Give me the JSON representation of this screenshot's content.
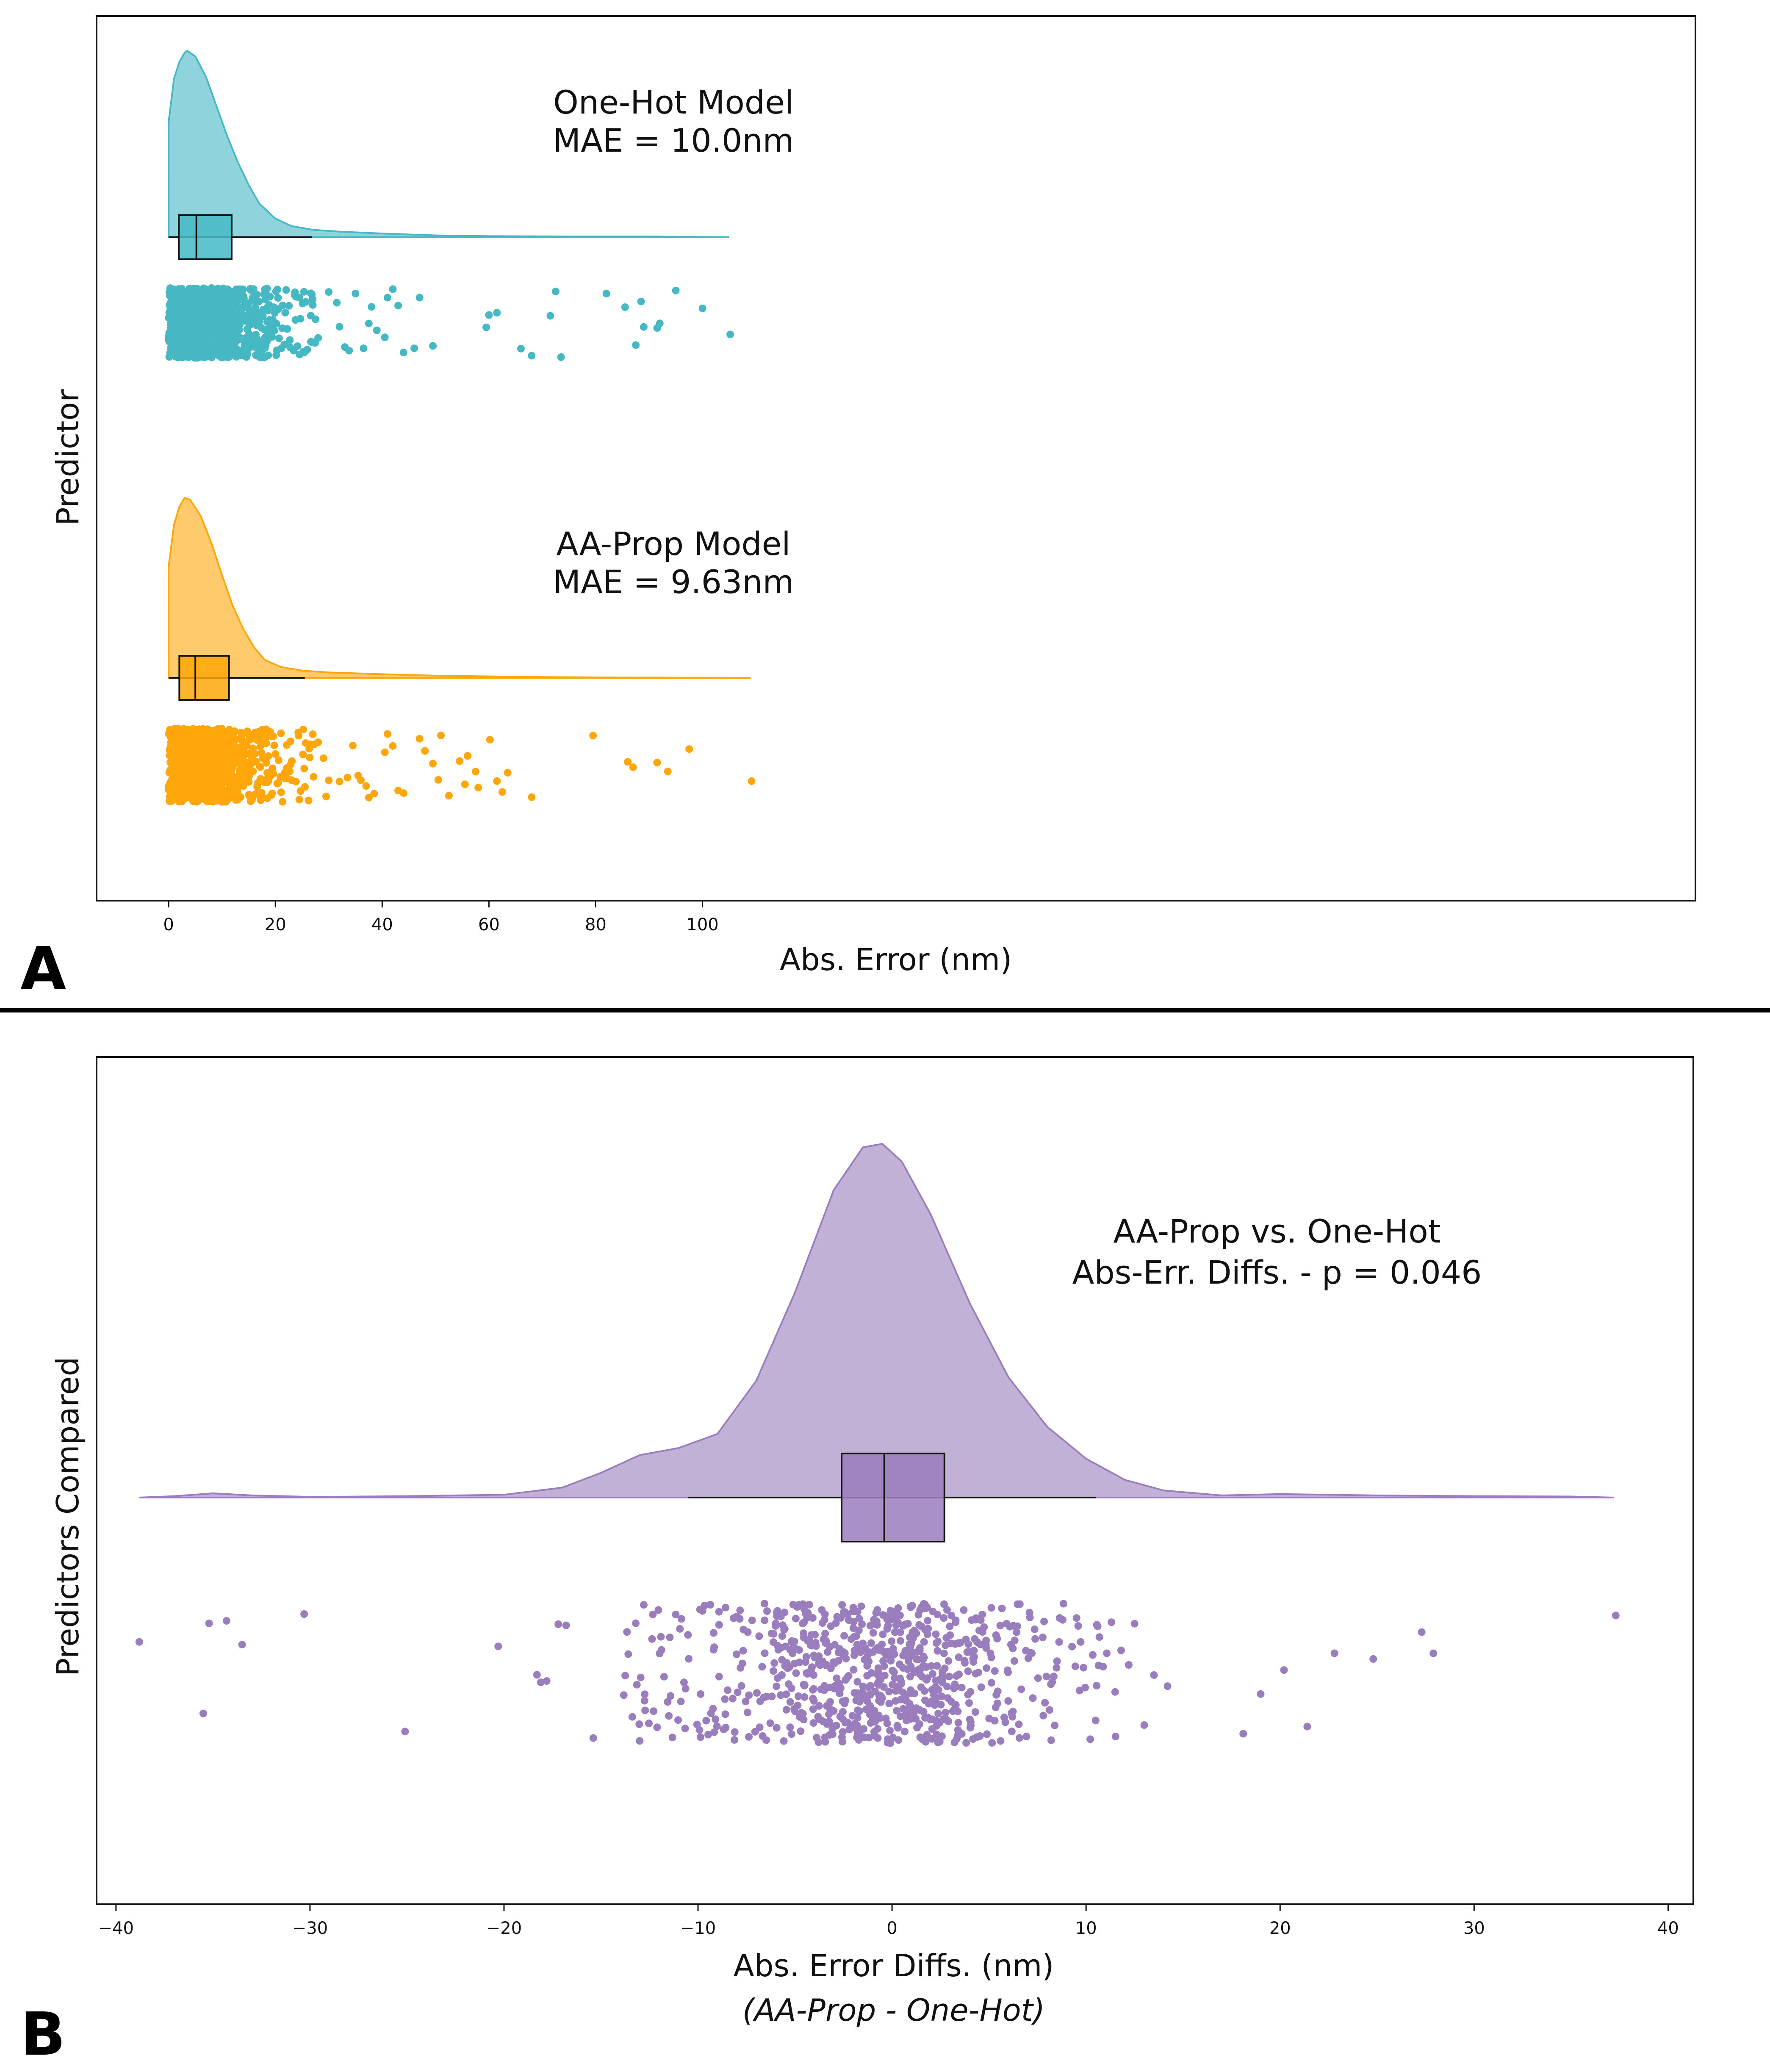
{
  "colors": {
    "onehot": "#45b8c4",
    "aaprop": "#ffa70a",
    "diff": "#9a7dbd",
    "frame": "#111111"
  },
  "chart_data": [
    {
      "panel": "A",
      "type": "raincloud",
      "xlabel": "Abs. Error (nm)",
      "ylabel": "Predictor",
      "xlim": [
        -13.5,
        286
      ],
      "xticks": [
        0,
        20,
        40,
        60,
        80,
        100
      ],
      "series": [
        {
          "key": "onehot",
          "annotation": [
            "One-Hot Model",
            "MAE = 10.0nm"
          ],
          "density": [
            [
              0,
              0.62
            ],
            [
              1,
              0.85
            ],
            [
              2,
              0.94
            ],
            [
              3,
              0.99
            ],
            [
              3.5,
              1.0
            ],
            [
              5,
              0.97
            ],
            [
              7,
              0.86
            ],
            [
              9,
              0.7
            ],
            [
              11,
              0.54
            ],
            [
              13,
              0.4
            ],
            [
              15,
              0.28
            ],
            [
              17,
              0.18
            ],
            [
              20,
              0.1
            ],
            [
              23,
              0.06
            ],
            [
              27,
              0.04
            ],
            [
              32,
              0.03
            ],
            [
              40,
              0.02
            ],
            [
              50,
              0.01
            ],
            [
              60,
              0.006
            ],
            [
              75,
              0.004
            ],
            [
              90,
              0.004
            ],
            [
              105,
              0.0
            ]
          ],
          "box": {
            "whisker_low": 0,
            "q1": 1.9,
            "median": 5.2,
            "q3": 11.8,
            "whisker_high": 26.8
          },
          "outliers": [
            27.5,
            28,
            30,
            31.5,
            32,
            33,
            33.8,
            35,
            36.5,
            37.5,
            38,
            39,
            40.5,
            41,
            42,
            43,
            44,
            46,
            47,
            49.5,
            59.5,
            60,
            61.5,
            66,
            68,
            71.5,
            72.5,
            73.5,
            82,
            85.5,
            87.5,
            88.5,
            89,
            91.5,
            92,
            95,
            100,
            105.2
          ]
        },
        {
          "key": "aaprop",
          "annotation": [
            "AA-Prop Model",
            "MAE = 9.63nm"
          ],
          "density": [
            [
              0,
              0.62
            ],
            [
              1,
              0.85
            ],
            [
              2,
              0.95
            ],
            [
              3,
              1.0
            ],
            [
              4,
              0.99
            ],
            [
              6,
              0.9
            ],
            [
              8,
              0.75
            ],
            [
              10,
              0.57
            ],
            [
              12,
              0.4
            ],
            [
              14,
              0.27
            ],
            [
              16,
              0.17
            ],
            [
              18,
              0.1
            ],
            [
              21,
              0.06
            ],
            [
              25,
              0.04
            ],
            [
              30,
              0.03
            ],
            [
              40,
              0.02
            ],
            [
              50,
              0.012
            ],
            [
              60,
              0.008
            ],
            [
              70,
              0.004
            ],
            [
              85,
              0.002
            ],
            [
              100,
              0.001
            ],
            [
              109,
              0.0
            ]
          ],
          "box": {
            "whisker_low": 0,
            "q1": 2.0,
            "median": 5.0,
            "q3": 11.3,
            "whisker_high": 25.5
          },
          "outliers": [
            26.5,
            27,
            28,
            29,
            29.5,
            30,
            32,
            33.5,
            34.5,
            35.5,
            36,
            37,
            37.5,
            38.5,
            40.5,
            41,
            42,
            43,
            44,
            47,
            48,
            49.5,
            50.5,
            51,
            52.5,
            54.5,
            55.5,
            56,
            57.5,
            58,
            60.2,
            61.5,
            62.5,
            63.5,
            68,
            79.5,
            86,
            87,
            91.5,
            93.5,
            97.5,
            109.2
          ]
        }
      ]
    },
    {
      "panel": "B",
      "type": "raincloud",
      "xlabel": "Abs. Error Diffs. (nm)",
      "xlabel_sub": "(AA-Prop - One-Hot)",
      "ylabel": "Predictors Compared",
      "xlim": [
        -41,
        41.3
      ],
      "xticks": [
        -40,
        -30,
        -20,
        -10,
        0,
        10,
        20,
        30,
        40
      ],
      "series": [
        {
          "key": "diff",
          "annotation": [
            "AA-Prop vs. One-Hot",
            "Abs-Err. Diffs. - p = 0.046"
          ],
          "density": [
            [
              -38.8,
              0.0
            ],
            [
              -37,
              0.004
            ],
            [
              -35,
              0.012
            ],
            [
              -33,
              0.006
            ],
            [
              -30,
              0.002
            ],
            [
              -25,
              0.004
            ],
            [
              -20,
              0.008
            ],
            [
              -17,
              0.028
            ],
            [
              -15,
              0.07
            ],
            [
              -13,
              0.12
            ],
            [
              -11,
              0.14
            ],
            [
              -9,
              0.18
            ],
            [
              -7,
              0.33
            ],
            [
              -5,
              0.58
            ],
            [
              -3,
              0.87
            ],
            [
              -1.5,
              0.99
            ],
            [
              -0.5,
              1.0
            ],
            [
              0.5,
              0.95
            ],
            [
              2,
              0.8
            ],
            [
              4,
              0.55
            ],
            [
              6,
              0.34
            ],
            [
              8,
              0.2
            ],
            [
              10,
              0.11
            ],
            [
              12,
              0.05
            ],
            [
              14,
              0.02
            ],
            [
              17,
              0.006
            ],
            [
              20,
              0.01
            ],
            [
              25,
              0.006
            ],
            [
              30,
              0.004
            ],
            [
              35,
              0.003
            ],
            [
              37.2,
              0.0
            ]
          ],
          "box": {
            "whisker_low": -10.5,
            "q1": -2.6,
            "median": -0.4,
            "q3": 2.7,
            "whisker_high": 10.5
          },
          "outliers": [
            -38.8,
            -35.5,
            -35.2,
            -34.3,
            -33.5,
            -30.3,
            -25.1,
            -20.3,
            -18.3,
            -18.1,
            -17.8,
            -17.2,
            -16.8,
            -15.4,
            11.5,
            12.2,
            12.5,
            13.0,
            13.5,
            14.2,
            18.1,
            19.0,
            20.2,
            21.4,
            22.8,
            24.8,
            27.3,
            27.9,
            37.3
          ]
        }
      ]
    }
  ]
}
